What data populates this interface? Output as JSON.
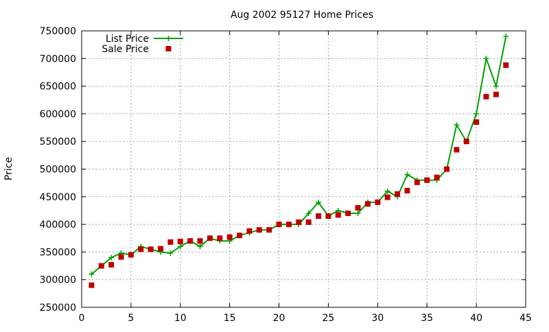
{
  "chart_data": {
    "type": "line",
    "title": "Aug 2002 95127 Home Prices",
    "xlabel": "",
    "ylabel": "Price",
    "xlim": [
      0,
      45
    ],
    "ylim": [
      250000,
      750000
    ],
    "xticks": [
      0,
      5,
      10,
      15,
      20,
      25,
      30,
      35,
      40,
      45
    ],
    "yticks": [
      250000,
      300000,
      350000,
      400000,
      450000,
      500000,
      550000,
      600000,
      650000,
      700000,
      750000
    ],
    "grid": true,
    "legend_position": "top-left",
    "series": [
      {
        "name": "List Price",
        "style": "line-with-plus-markers",
        "color": "#00a000",
        "x": [
          1,
          2,
          3,
          4,
          5,
          6,
          7,
          8,
          9,
          10,
          11,
          12,
          13,
          14,
          15,
          16,
          17,
          18,
          19,
          20,
          21,
          22,
          23,
          24,
          25,
          26,
          27,
          28,
          29,
          30,
          31,
          32,
          33,
          34,
          35,
          36,
          37,
          38,
          39,
          40,
          41,
          42,
          43
        ],
        "y": [
          310000,
          325000,
          340000,
          348000,
          345000,
          360000,
          355000,
          350000,
          348000,
          360000,
          370000,
          360000,
          375000,
          370000,
          370000,
          380000,
          385000,
          390000,
          390000,
          400000,
          400000,
          400000,
          420000,
          440000,
          415000,
          425000,
          420000,
          420000,
          440000,
          440000,
          460000,
          450000,
          490000,
          480000,
          480000,
          480000,
          500000,
          580000,
          550000,
          600000,
          700000,
          650000,
          740000
        ]
      },
      {
        "name": "Sale Price",
        "style": "square-markers",
        "color": "#c00000",
        "x": [
          1,
          2,
          3,
          4,
          5,
          6,
          7,
          8,
          9,
          10,
          11,
          12,
          13,
          14,
          15,
          16,
          17,
          18,
          19,
          20,
          21,
          22,
          23,
          24,
          25,
          26,
          27,
          28,
          29,
          30,
          31,
          32,
          33,
          34,
          35,
          36,
          37,
          38,
          39,
          40,
          41,
          42,
          43
        ],
        "y": [
          290000,
          325000,
          327000,
          341000,
          345000,
          355000,
          355000,
          356000,
          368000,
          369000,
          370000,
          370000,
          375000,
          375000,
          377000,
          380000,
          388000,
          390000,
          390000,
          400000,
          400000,
          404000,
          404000,
          415000,
          415000,
          417000,
          420000,
          430000,
          437000,
          440000,
          449000,
          455000,
          461000,
          476000,
          480000,
          485000,
          500000,
          535000,
          550000,
          585000,
          631000,
          635000,
          688000
        ]
      }
    ]
  }
}
